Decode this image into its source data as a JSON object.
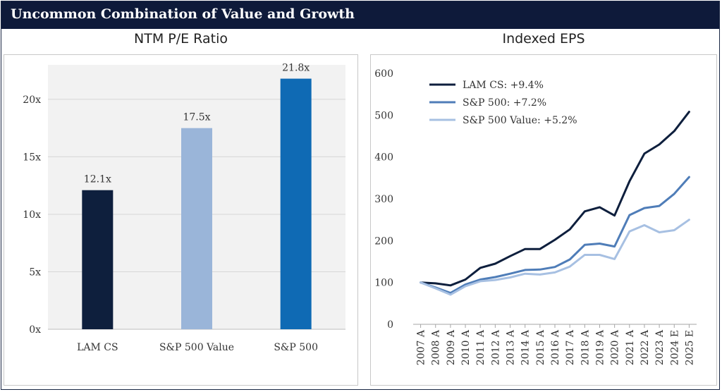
{
  "header": {
    "title": "Uncommon Combination of Value and Growth"
  },
  "colors": {
    "header_bg": "#0e1a3a",
    "lam": "#0e1f3d",
    "sp_value": "#9ab5d9",
    "sp500": "#0f6ab4",
    "line_sp500": "#4f7db8"
  },
  "chart_data": [
    {
      "type": "bar",
      "title": "NTM P/E Ratio",
      "categories": [
        "LAM CS",
        "S&P 500 Value",
        "S&P 500"
      ],
      "values": [
        12.1,
        17.5,
        21.8
      ],
      "data_labels": [
        "12.1x",
        "17.5x",
        "21.8x"
      ],
      "colors": [
        "#0e1f3d",
        "#9ab5d9",
        "#0f6ab4"
      ],
      "yticks": [
        0,
        5,
        10,
        15,
        20
      ],
      "ytick_labels": [
        "0x",
        "5x",
        "10x",
        "15x",
        "20x"
      ],
      "ylim": [
        0,
        23
      ],
      "xlabel": "",
      "ylabel": ""
    },
    {
      "type": "line",
      "title": "Indexed EPS",
      "x": [
        "2007 A",
        "2008 A",
        "2009 A",
        "2010 A",
        "2011 A",
        "2012 A",
        "2013 A",
        "2014 A",
        "2015 A",
        "2016 A",
        "2017 A",
        "2018 A",
        "2019 A",
        "2020 A",
        "2021 A",
        "2022 A",
        "2023 A",
        "2024 E",
        "2025 E"
      ],
      "series": [
        {
          "name": "LAM CS: +9.4%",
          "color": "#0e1f3d",
          "values": [
            100,
            98,
            93,
            107,
            135,
            145,
            163,
            180,
            180,
            202,
            227,
            270,
            280,
            260,
            342,
            408,
            430,
            462,
            508
          ]
        },
        {
          "name": "S&P 500: +7.2%",
          "color": "#4f7db8",
          "values": [
            100,
            88,
            75,
            95,
            107,
            113,
            121,
            130,
            131,
            137,
            155,
            190,
            193,
            186,
            261,
            278,
            283,
            312,
            352
          ]
        },
        {
          "name": "S&P 500 Value: +5.2%",
          "color": "#a7c0e2",
          "values": [
            100,
            86,
            71,
            91,
            103,
            106,
            112,
            121,
            119,
            124,
            138,
            166,
            166,
            156,
            222,
            237,
            220,
            225,
            250
          ]
        }
      ],
      "yticks": [
        0,
        100,
        200,
        300,
        400,
        500,
        600
      ],
      "ytick_labels": [
        "0",
        "100",
        "200",
        "300",
        "400",
        "500",
        "600"
      ],
      "ylim": [
        0,
        600
      ],
      "legend_position": "top-left",
      "xlabel": "",
      "ylabel": ""
    }
  ]
}
